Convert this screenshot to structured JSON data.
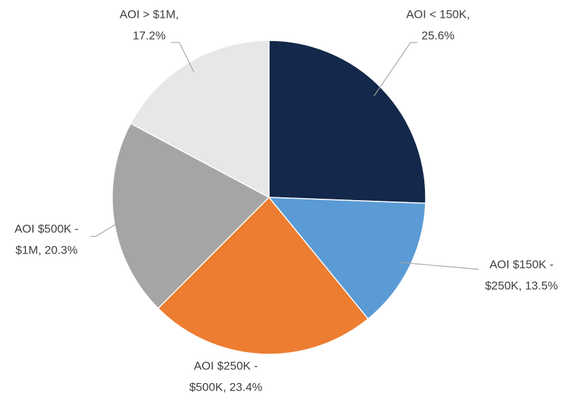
{
  "chart_data": {
    "type": "pie",
    "values": [
      25.6,
      13.5,
      23.4,
      20.3,
      17.2
    ],
    "value_labels": [
      [
        "AOI < 150K,",
        "25.6%"
      ],
      [
        "AOI $150K -",
        "$250K, 13.5%"
      ],
      [
        "AOI $250K -",
        "$500K, 23.4%"
      ],
      [
        "AOI $500K -",
        "$1M, 20.3%"
      ],
      [
        "AOI > $1M,",
        "17.2%"
      ]
    ],
    "colors": [
      "#14284b",
      "#5b9bd5",
      "#ed7d31",
      "#a5a5a5",
      "#e7e7e7"
    ]
  }
}
